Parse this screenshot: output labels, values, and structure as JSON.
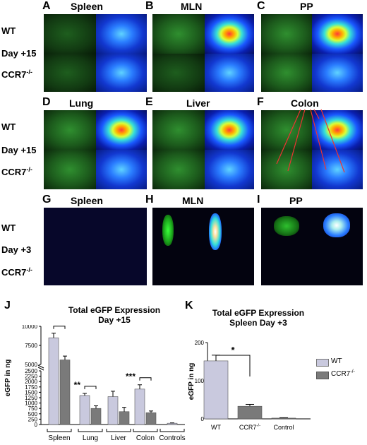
{
  "panels": {
    "A": {
      "letter": "A",
      "title": "Spleen"
    },
    "B": {
      "letter": "B",
      "title": "MLN"
    },
    "C": {
      "letter": "C",
      "title": "PP"
    },
    "D": {
      "letter": "D",
      "title": "Lung"
    },
    "E": {
      "letter": "E",
      "title": "Liver"
    },
    "F": {
      "letter": "F",
      "title": "Colon"
    },
    "G": {
      "letter": "G",
      "title": "Spleen"
    },
    "H": {
      "letter": "H",
      "title": "MLN"
    },
    "I": {
      "letter": "I",
      "title": "PP"
    },
    "J": {
      "letter": "J"
    },
    "K": {
      "letter": "K"
    }
  },
  "rows": {
    "wt": "WT",
    "day15": "Day +15",
    "day3": "Day +3",
    "ko_base": "CCR7",
    "ko_sup": "-/-"
  },
  "colors": {
    "wt_bar": "#c9c9de",
    "ko_bar": "#7a7a7a"
  },
  "chart_data": [
    {
      "type": "bar",
      "title": "Total eGFP Expression",
      "subtitle": "Day +15",
      "ylabel": "eGFP in ng",
      "yticks": [
        "0",
        "250",
        "500",
        "750",
        "1000",
        "1250",
        "1500",
        "1750",
        "2000",
        "2250",
        "2500",
        "5000",
        "7500",
        "10000"
      ],
      "ylim_lower": [
        0,
        2500
      ],
      "ylim_upper": [
        5000,
        10000
      ],
      "categories": [
        "Spleen",
        "Lung",
        "Liver",
        "Colon",
        "Controls"
      ],
      "series": [
        {
          "name": "WT",
          "values": [
            8500,
            1350,
            1300,
            1650,
            60
          ],
          "errors": [
            600,
            100,
            250,
            200,
            15
          ]
        },
        {
          "name": "CCR7-/-",
          "values": [
            5600,
            750,
            600,
            550,
            null
          ],
          "errors": [
            500,
            120,
            200,
            80,
            null
          ]
        }
      ],
      "significance": [
        "*",
        "**",
        "",
        "***",
        ""
      ],
      "legend": {
        "wt": "WT",
        "ko_base": "CCR7",
        "ko_sup": "-/-",
        "position": "right"
      }
    },
    {
      "type": "bar",
      "title": "Total eGFP Expression",
      "subtitle": "Spleen Day +3",
      "ylabel": "eGFP in ng",
      "yticks": [
        "0",
        "100",
        "200"
      ],
      "ylim": [
        0,
        200
      ],
      "categories": [
        "WT",
        "CCR7-/-",
        "Control"
      ],
      "cat_ko_base": "CCR7",
      "cat_ko_sup": "-/-",
      "values": [
        152,
        33,
        2
      ],
      "errors": [
        15,
        5,
        1
      ],
      "significance": "*"
    }
  ]
}
